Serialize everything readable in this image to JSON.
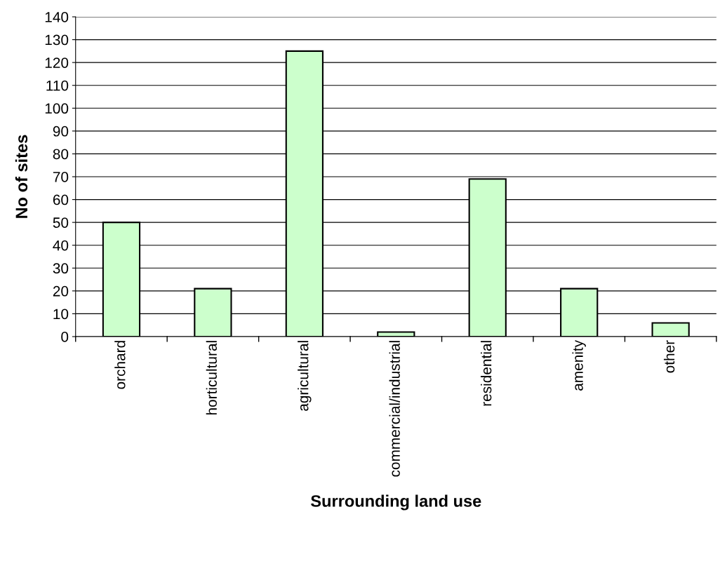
{
  "chart_data": {
    "type": "bar",
    "xlabel": "Surrounding land use",
    "ylabel": "No of sites",
    "categories": [
      "orchard",
      "horticultural",
      "agricultural",
      "commercial/industrial",
      "residential",
      "amenity",
      "other"
    ],
    "values": [
      50,
      21,
      125,
      2,
      69,
      21,
      6
    ],
    "color": "#ccffcc",
    "ylim": [
      0,
      140
    ],
    "yticks": [
      0,
      10,
      20,
      30,
      40,
      50,
      60,
      70,
      80,
      90,
      100,
      110,
      120,
      130,
      140
    ],
    "grid": "y"
  }
}
